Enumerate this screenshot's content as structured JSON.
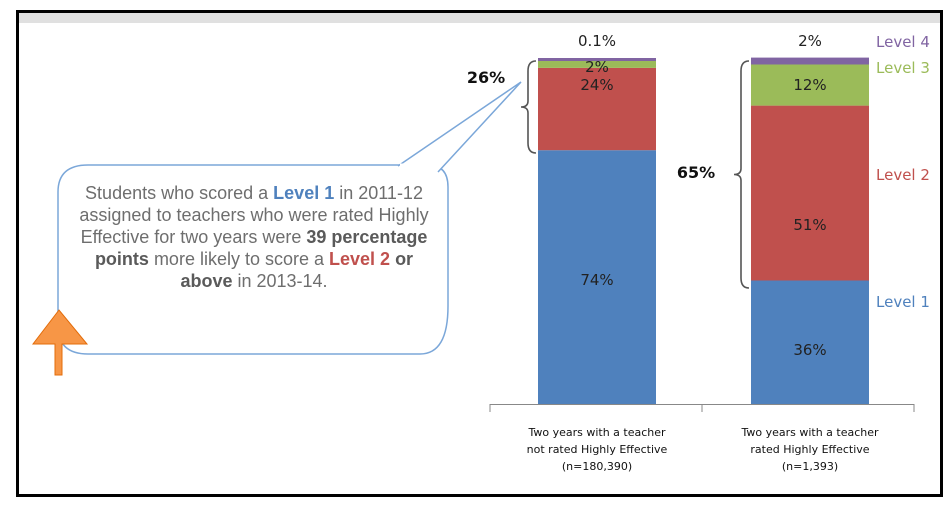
{
  "chart_data": {
    "type": "bar",
    "stacked": true,
    "categories": [
      "Two years with a teacher not rated Highly Effective (n=180,390)",
      "Two years with a teacher rated Highly Effective (n=1,393)"
    ],
    "category_lines": [
      [
        "Two years with a teacher",
        "not rated Highly Effective",
        "(n=180,390)"
      ],
      [
        "Two years with a teacher",
        "rated Highly Effective",
        "(n=1,393)"
      ]
    ],
    "series": [
      {
        "name": "Level 1",
        "values": [
          74,
          36
        ],
        "labels": [
          "74%",
          "36%"
        ],
        "color": "#4f81bd"
      },
      {
        "name": "Level 2",
        "values": [
          24,
          51
        ],
        "labels": [
          "24%",
          "51%"
        ],
        "color": "#c0504d"
      },
      {
        "name": "Level 3",
        "values": [
          2,
          12
        ],
        "labels": [
          "2%",
          "12%"
        ],
        "color": "#9bbb59"
      },
      {
        "name": "Level 4",
        "values": [
          0.1,
          2
        ],
        "labels": [
          "0.1%",
          "2%"
        ],
        "color": "#8064a2"
      }
    ],
    "brackets": [
      {
        "category_index": 0,
        "label": "26%",
        "value": 26
      },
      {
        "category_index": 1,
        "label": "65%",
        "value": 65
      }
    ],
    "ylim": [
      0,
      100
    ],
    "legend": "right",
    "grid": false
  },
  "callout": {
    "p1": "Students who scored a ",
    "b1": "Level 1",
    "p2": " in 2011-12 assigned to teachers who were rated Highly Effective for two years were ",
    "b2": "39 percentage points",
    "p3": " more likely to score a ",
    "b3": "Level 2",
    "b4": "or above",
    "p4": " in 2013-14."
  },
  "arrow_color": "#f79646"
}
